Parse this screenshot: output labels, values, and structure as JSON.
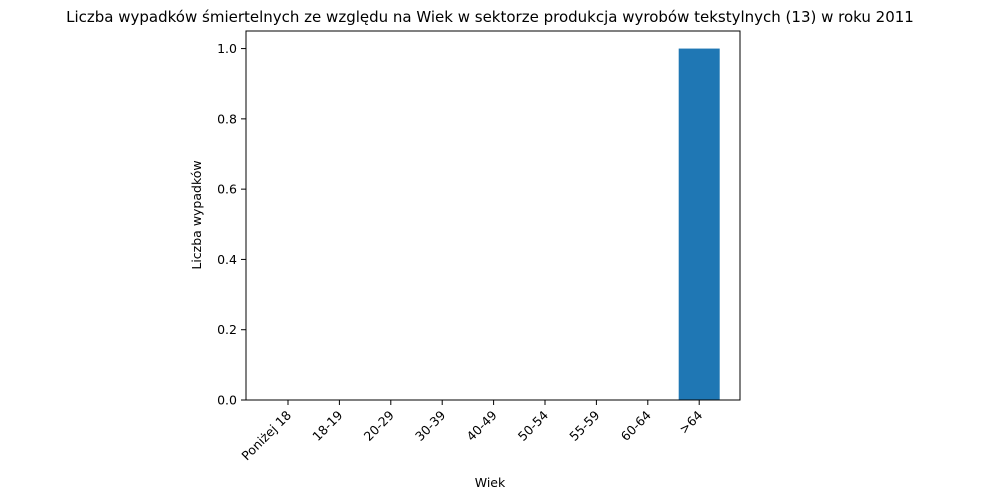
{
  "chart_data": {
    "type": "bar",
    "title": "Liczba wypadków śmiertelnych ze względu na Wiek w sektorze produkcja wyrobów tekstylnych  (13)   w roku 2011",
    "xlabel": "Wiek",
    "ylabel": "Liczba wypadków",
    "categories": [
      "Poniżej 18",
      "18-19",
      "20-29",
      "30-39",
      "40-49",
      "50-54",
      "55-59",
      "60-64",
      ">64"
    ],
    "values": [
      0,
      0,
      0,
      0,
      0,
      0,
      0,
      0,
      1
    ],
    "ylim": [
      0,
      1.05
    ],
    "yticks": [
      "0.0",
      "0.2",
      "0.4",
      "0.6",
      "0.8",
      "1.0"
    ],
    "bar_color": "#1f77b4",
    "grid": false,
    "legend": "none"
  }
}
